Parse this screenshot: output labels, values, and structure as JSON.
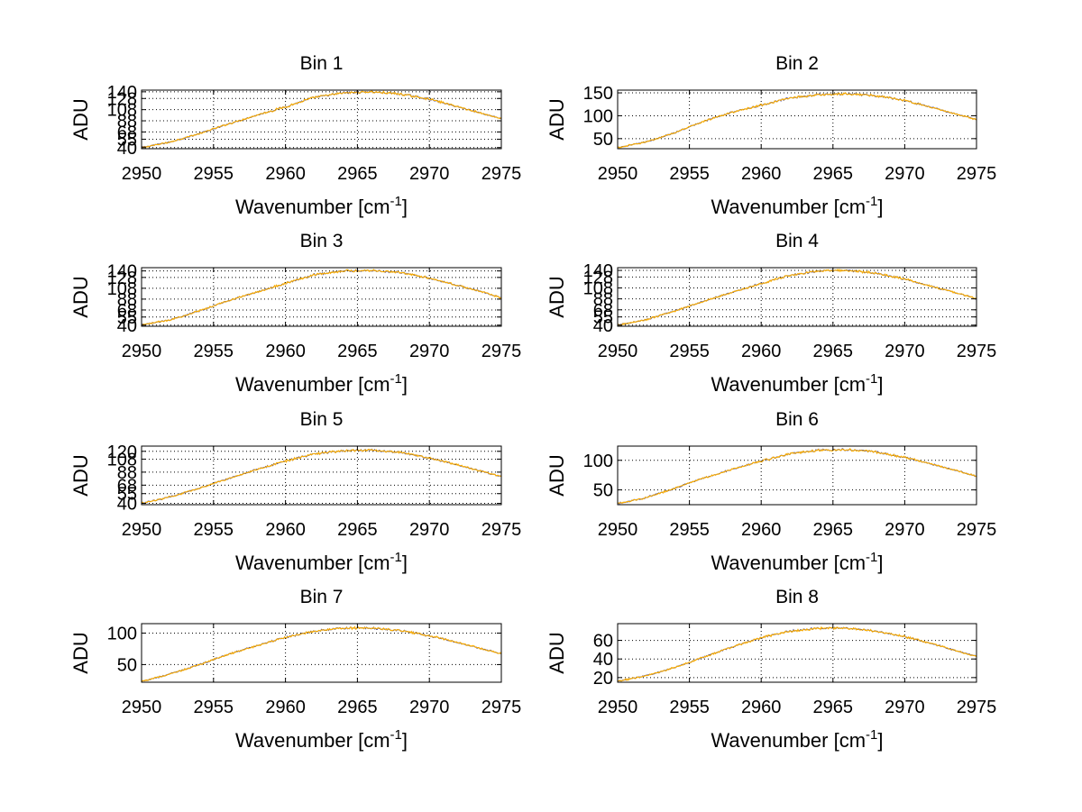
{
  "figure": {
    "background": "#ffffff",
    "series_colors": [
      "#000000",
      "#3a3aa0",
      "#ffb000"
    ]
  },
  "chart_data": [
    {
      "type": "line",
      "title": "Bin 1",
      "xlabel": "Wavenumber [cm",
      "xlabel_sup": "-1",
      "xlabel_end": "]",
      "ylabel": "ADU",
      "xlim": [
        2950,
        2975
      ],
      "ylim": [
        38,
        143
      ],
      "grid": true,
      "xticks": [
        2950,
        2955,
        2960,
        2965,
        2970,
        2975
      ],
      "yticks": [
        40,
        55,
        68,
        88,
        108,
        128,
        140
      ],
      "x": [
        2950,
        2952,
        2954,
        2956,
        2958,
        2960,
        2962,
        2964,
        2966,
        2968,
        2970,
        2972,
        2974,
        2975
      ],
      "series": [
        {
          "values": [
            40,
            50,
            65,
            82,
            98,
            113,
            130,
            138,
            140,
            136,
            127,
            113,
            99,
            92
          ]
        }
      ]
    },
    {
      "type": "line",
      "title": "Bin 2",
      "xlabel": "Wavenumber [cm",
      "xlabel_sup": "-1",
      "xlabel_end": "]",
      "ylabel": "ADU",
      "xlim": [
        2950,
        2975
      ],
      "ylim": [
        28,
        156
      ],
      "grid": true,
      "xticks": [
        2950,
        2955,
        2960,
        2965,
        2970,
        2975
      ],
      "yticks": [
        50,
        100,
        150
      ],
      "x": [
        2950,
        2952,
        2954,
        2956,
        2958,
        2960,
        2962,
        2964,
        2966,
        2968,
        2970,
        2972,
        2974,
        2975
      ],
      "series": [
        {
          "values": [
            30,
            43,
            63,
            88,
            108,
            123,
            139,
            146,
            148,
            144,
            134,
            117,
            100,
            92
          ]
        }
      ]
    },
    {
      "type": "line",
      "title": "Bin 3",
      "xlabel": "Wavenumber [cm",
      "xlabel_sup": "-1",
      "xlabel_end": "]",
      "ylabel": "ADU",
      "xlim": [
        2950,
        2975
      ],
      "ylim": [
        38,
        146
      ],
      "grid": true,
      "xticks": [
        2950,
        2955,
        2960,
        2965,
        2970,
        2975
      ],
      "yticks": [
        40,
        55,
        68,
        88,
        108,
        128,
        140
      ],
      "x": [
        2950,
        2952,
        2954,
        2956,
        2958,
        2960,
        2962,
        2964,
        2966,
        2968,
        2970,
        2972,
        2974,
        2975
      ],
      "series": [
        {
          "values": [
            40,
            50,
            66,
            85,
            101,
            117,
            133,
            140,
            141,
            137,
            127,
            113,
            99,
            90
          ]
        }
      ]
    },
    {
      "type": "line",
      "title": "Bin 4",
      "xlabel": "Wavenumber [cm",
      "xlabel_sup": "-1",
      "xlabel_end": "]",
      "ylabel": "ADU",
      "xlim": [
        2950,
        2975
      ],
      "ylim": [
        38,
        145
      ],
      "grid": true,
      "xticks": [
        2950,
        2955,
        2960,
        2965,
        2970,
        2975
      ],
      "yticks": [
        40,
        55,
        68,
        88,
        108,
        128,
        140
      ],
      "x": [
        2950,
        2952,
        2954,
        2956,
        2958,
        2960,
        2962,
        2964,
        2966,
        2968,
        2970,
        2972,
        2974,
        2975
      ],
      "series": [
        {
          "values": [
            40,
            50,
            66,
            84,
            100,
            116,
            131,
            139,
            140,
            135,
            124,
            110,
            96,
            88
          ]
        }
      ]
    },
    {
      "type": "line",
      "title": "Bin 5",
      "xlabel": "Wavenumber [cm",
      "xlabel_sup": "-1",
      "xlabel_end": "]",
      "ylabel": "ADU",
      "xlim": [
        2950,
        2975
      ],
      "ylim": [
        38,
        128
      ],
      "grid": true,
      "xticks": [
        2950,
        2955,
        2960,
        2965,
        2970,
        2975
      ],
      "yticks": [
        40,
        55,
        68,
        88,
        108,
        120
      ],
      "x": [
        2950,
        2952,
        2954,
        2956,
        2958,
        2960,
        2962,
        2964,
        2966,
        2968,
        2970,
        2972,
        2974,
        2975
      ],
      "series": [
        {
          "values": [
            40,
            50,
            63,
            78,
            92,
            105,
            116,
            121,
            122,
            118,
            110,
            99,
            87,
            81
          ]
        }
      ]
    },
    {
      "type": "line",
      "title": "Bin 6",
      "xlabel": "Wavenumber [cm",
      "xlabel_sup": "-1",
      "xlabel_end": "]",
      "ylabel": "ADU",
      "xlim": [
        2950,
        2975
      ],
      "ylim": [
        25,
        124
      ],
      "grid": true,
      "xticks": [
        2950,
        2955,
        2960,
        2965,
        2970,
        2975
      ],
      "yticks": [
        50,
        100
      ],
      "x": [
        2950,
        2952,
        2954,
        2956,
        2958,
        2960,
        2962,
        2964,
        2966,
        2968,
        2970,
        2972,
        2974,
        2975
      ],
      "series": [
        {
          "values": [
            27,
            37,
            53,
            70,
            85,
            99,
            111,
            117,
            118,
            114,
            105,
            93,
            80,
            73
          ]
        }
      ]
    },
    {
      "type": "line",
      "title": "Bin 7",
      "xlabel": "Wavenumber [cm",
      "xlabel_sup": "-1",
      "xlabel_end": "]",
      "ylabel": "ADU",
      "xlim": [
        2950,
        2975
      ],
      "ylim": [
        22,
        115
      ],
      "grid": true,
      "xticks": [
        2950,
        2955,
        2960,
        2965,
        2970,
        2975
      ],
      "yticks": [
        50,
        100
      ],
      "x": [
        2950,
        2952,
        2954,
        2956,
        2958,
        2960,
        2962,
        2964,
        2966,
        2968,
        2970,
        2972,
        2974,
        2975
      ],
      "series": [
        {
          "values": [
            23,
            35,
            50,
            66,
            80,
            93,
            103,
            108,
            108,
            104,
            96,
            85,
            73,
            67
          ]
        }
      ]
    },
    {
      "type": "line",
      "title": "Bin 8",
      "xlabel": "Wavenumber [cm",
      "xlabel_sup": "-1",
      "xlabel_end": "]",
      "ylabel": "ADU",
      "xlim": [
        2950,
        2975
      ],
      "ylim": [
        15,
        78
      ],
      "grid": true,
      "xticks": [
        2950,
        2955,
        2960,
        2965,
        2970,
        2975
      ],
      "yticks": [
        20,
        40,
        60
      ],
      "x": [
        2950,
        2952,
        2954,
        2956,
        2958,
        2960,
        2962,
        2964,
        2966,
        2968,
        2970,
        2972,
        2974,
        2975
      ],
      "series": [
        {
          "values": [
            16,
            22,
            31,
            42,
            53,
            63,
            70,
            73,
            73,
            70,
            64,
            56,
            47,
            43
          ]
        }
      ]
    }
  ]
}
